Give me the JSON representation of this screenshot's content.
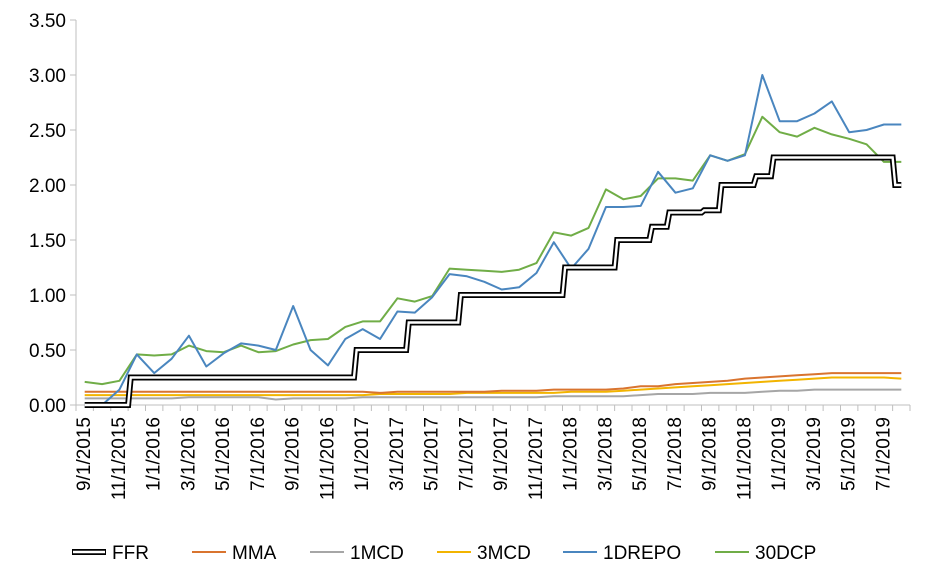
{
  "chart_data": {
    "type": "line",
    "ylim": [
      0,
      3.5
    ],
    "y_ticks": [
      "0.00",
      "0.50",
      "1.00",
      "1.50",
      "2.00",
      "2.50",
      "3.00",
      "3.50"
    ],
    "x_tick_labels": [
      "9/1/2015",
      "11/1/2015",
      "1/1/2016",
      "3/1/2016",
      "5/1/2016",
      "7/1/2016",
      "9/1/2016",
      "11/1/2016",
      "1/1/2017",
      "3/1/2017",
      "5/1/2017",
      "7/1/2017",
      "9/1/2017",
      "11/1/2017",
      "1/1/2018",
      "3/1/2018",
      "5/1/2018",
      "7/1/2018",
      "9/1/2018",
      "11/1/2018",
      "1/1/2019",
      "3/1/2019",
      "5/1/2019",
      "7/1/2019"
    ],
    "x_tick_every": 2,
    "x": [
      "9/1/2015",
      "10/1/2015",
      "11/1/2015",
      "12/1/2015",
      "1/1/2016",
      "2/1/2016",
      "3/1/2016",
      "4/1/2016",
      "5/1/2016",
      "6/1/2016",
      "7/1/2016",
      "8/1/2016",
      "9/1/2016",
      "10/1/2016",
      "11/1/2016",
      "12/1/2016",
      "1/1/2017",
      "2/1/2017",
      "3/1/2017",
      "4/1/2017",
      "5/1/2017",
      "6/1/2017",
      "7/1/2017",
      "8/1/2017",
      "9/1/2017",
      "10/1/2017",
      "11/1/2017",
      "12/1/2017",
      "1/1/2018",
      "2/1/2018",
      "3/1/2018",
      "4/1/2018",
      "5/1/2018",
      "6/1/2018",
      "7/1/2018",
      "8/1/2018",
      "9/1/2018",
      "10/1/2018",
      "11/1/2018",
      "12/1/2018",
      "1/1/2019",
      "2/1/2019",
      "3/1/2019",
      "4/1/2019",
      "5/1/2019",
      "6/1/2019",
      "7/1/2019",
      "8/1/2019"
    ],
    "legend_position": "bottom",
    "grid": false,
    "series": [
      {
        "name": "FFR",
        "color": "#000000",
        "style": "double",
        "step": true,
        "values": [
          0.0,
          0.0,
          0.0,
          0.25,
          0.25,
          0.25,
          0.25,
          0.25,
          0.25,
          0.25,
          0.25,
          0.25,
          0.25,
          0.25,
          0.25,
          0.25,
          0.5,
          0.5,
          0.5,
          0.75,
          0.75,
          0.75,
          1.0,
          1.0,
          1.0,
          1.0,
          1.0,
          1.0,
          1.25,
          1.25,
          1.25,
          1.5,
          1.5,
          1.62,
          1.75,
          1.75,
          1.77,
          2.0,
          2.0,
          2.08,
          2.25,
          2.25,
          2.25,
          2.25,
          2.25,
          2.25,
          2.25,
          2.0
        ]
      },
      {
        "name": "MMA",
        "color": "#D9742F",
        "values": [
          0.12,
          0.12,
          0.12,
          0.12,
          0.12,
          0.12,
          0.12,
          0.12,
          0.12,
          0.12,
          0.12,
          0.12,
          0.12,
          0.12,
          0.12,
          0.12,
          0.12,
          0.11,
          0.12,
          0.12,
          0.12,
          0.12,
          0.12,
          0.12,
          0.13,
          0.13,
          0.13,
          0.14,
          0.14,
          0.14,
          0.14,
          0.15,
          0.17,
          0.17,
          0.19,
          0.2,
          0.21,
          0.22,
          0.24,
          0.25,
          0.26,
          0.27,
          0.28,
          0.29,
          0.29,
          0.29,
          0.29,
          0.29
        ]
      },
      {
        "name": "1MCD",
        "color": "#A6A6A6",
        "values": [
          0.06,
          0.06,
          0.06,
          0.06,
          0.06,
          0.06,
          0.07,
          0.07,
          0.07,
          0.07,
          0.07,
          0.05,
          0.06,
          0.06,
          0.06,
          0.06,
          0.07,
          0.07,
          0.07,
          0.07,
          0.07,
          0.07,
          0.07,
          0.07,
          0.07,
          0.07,
          0.07,
          0.08,
          0.08,
          0.08,
          0.08,
          0.08,
          0.09,
          0.1,
          0.1,
          0.1,
          0.11,
          0.11,
          0.11,
          0.12,
          0.13,
          0.13,
          0.14,
          0.14,
          0.14,
          0.14,
          0.14,
          0.14
        ]
      },
      {
        "name": "3MCD",
        "color": "#F2B400",
        "values": [
          0.09,
          0.09,
          0.09,
          0.09,
          0.09,
          0.09,
          0.09,
          0.09,
          0.09,
          0.09,
          0.09,
          0.09,
          0.09,
          0.09,
          0.09,
          0.09,
          0.09,
          0.1,
          0.1,
          0.1,
          0.1,
          0.1,
          0.11,
          0.11,
          0.11,
          0.11,
          0.11,
          0.11,
          0.12,
          0.12,
          0.12,
          0.13,
          0.14,
          0.15,
          0.16,
          0.17,
          0.18,
          0.19,
          0.2,
          0.21,
          0.22,
          0.23,
          0.24,
          0.25,
          0.25,
          0.25,
          0.25,
          0.24
        ]
      },
      {
        "name": "1DREPO",
        "color": "#4A86BF",
        "values": [
          0.0,
          0.0,
          0.14,
          0.46,
          0.29,
          0.42,
          0.63,
          0.35,
          0.47,
          0.56,
          0.54,
          0.5,
          0.9,
          0.5,
          0.36,
          0.6,
          0.69,
          0.6,
          0.85,
          0.84,
          0.98,
          1.19,
          1.17,
          1.12,
          1.05,
          1.07,
          1.2,
          1.48,
          1.24,
          1.42,
          1.8,
          1.8,
          1.81,
          2.12,
          1.93,
          1.97,
          2.27,
          2.22,
          2.27,
          3.0,
          2.58,
          2.58,
          2.65,
          2.76,
          2.48,
          2.5,
          2.55,
          2.55
        ]
      },
      {
        "name": "30DCP",
        "color": "#70AD47",
        "values": [
          0.21,
          0.19,
          0.22,
          0.46,
          0.45,
          0.46,
          0.54,
          0.49,
          0.48,
          0.54,
          0.48,
          0.49,
          0.55,
          0.59,
          0.6,
          0.71,
          0.76,
          0.76,
          0.97,
          0.94,
          0.99,
          1.24,
          1.23,
          1.22,
          1.21,
          1.23,
          1.29,
          1.57,
          1.54,
          1.61,
          1.96,
          1.87,
          1.9,
          2.06,
          2.06,
          2.04,
          2.27,
          2.22,
          2.28,
          2.62,
          2.48,
          2.44,
          2.52,
          2.46,
          2.42,
          2.37,
          2.21,
          2.21
        ]
      }
    ]
  }
}
